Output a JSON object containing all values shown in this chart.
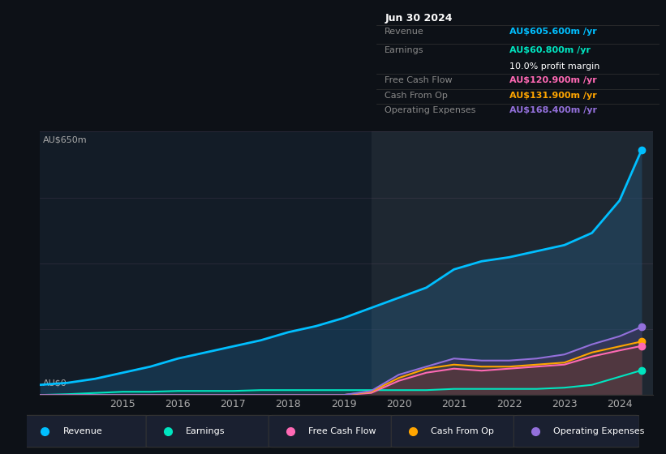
{
  "background_color": "#0d1117",
  "plot_bg_color": "#131c27",
  "ylabel_top": "AU$650m",
  "ylabel_bottom": "AU$0",
  "years": [
    2013.5,
    2014.0,
    2014.5,
    2015.0,
    2015.5,
    2016.0,
    2016.5,
    2017.0,
    2017.5,
    2018.0,
    2018.5,
    2019.0,
    2019.5,
    2020.0,
    2020.5,
    2021.0,
    2021.5,
    2022.0,
    2022.5,
    2023.0,
    2023.5,
    2024.0,
    2024.4
  ],
  "revenue": [
    25,
    30,
    40,
    55,
    70,
    90,
    105,
    120,
    135,
    155,
    170,
    190,
    215,
    240,
    265,
    310,
    330,
    340,
    355,
    370,
    400,
    480,
    605
  ],
  "earnings": [
    0,
    2,
    5,
    8,
    8,
    10,
    10,
    10,
    12,
    12,
    12,
    12,
    12,
    12,
    12,
    15,
    15,
    15,
    15,
    18,
    25,
    45,
    61
  ],
  "free_cash_flow": [
    0,
    0,
    0,
    0,
    0,
    0,
    0,
    0,
    0,
    0,
    0,
    0,
    5,
    35,
    55,
    65,
    60,
    65,
    70,
    75,
    95,
    110,
    121
  ],
  "cash_from_op": [
    0,
    0,
    0,
    0,
    0,
    0,
    0,
    0,
    0,
    0,
    0,
    0,
    8,
    42,
    65,
    75,
    70,
    70,
    75,
    80,
    105,
    120,
    132
  ],
  "operating_exp": [
    0,
    0,
    0,
    0,
    0,
    0,
    0,
    0,
    0,
    0,
    0,
    0,
    10,
    50,
    70,
    90,
    85,
    85,
    90,
    100,
    125,
    145,
    168
  ],
  "revenue_color": "#00bfff",
  "earnings_color": "#00e5c0",
  "free_cash_flow_color": "#ff69b4",
  "cash_from_op_color": "#ffa500",
  "operating_exp_color": "#9370db",
  "revenue_fill": "#1a4a6e",
  "earnings_fill": "#1a4a4a",
  "free_cash_flow_fill": "#5a2a3a",
  "cash_from_op_fill": "#4a3a1a",
  "operating_exp_fill": "#3a2a5a",
  "info_box": {
    "date": "Jun 30 2024",
    "revenue_label": "Revenue",
    "revenue_value": "AU$605.600m",
    "earnings_label": "Earnings",
    "earnings_value": "AU$60.800m",
    "profit_margin": "10.0% profit margin",
    "fcf_label": "Free Cash Flow",
    "fcf_value": "AU$120.900m",
    "cfop_label": "Cash From Op",
    "cfop_value": "AU$131.900m",
    "opex_label": "Operating Expenses",
    "opex_value": "AU$168.400m"
  },
  "legend_items": [
    {
      "label": "Revenue",
      "color": "#00bfff"
    },
    {
      "label": "Earnings",
      "color": "#00e5c0"
    },
    {
      "label": "Free Cash Flow",
      "color": "#ff69b4"
    },
    {
      "label": "Cash From Op",
      "color": "#ffa500"
    },
    {
      "label": "Operating Expenses",
      "color": "#9370db"
    }
  ],
  "xticks": [
    2015,
    2016,
    2017,
    2018,
    2019,
    2020,
    2021,
    2022,
    2023,
    2024
  ],
  "ylim": [
    0,
    650
  ],
  "xlim": [
    2013.5,
    2024.6
  ]
}
